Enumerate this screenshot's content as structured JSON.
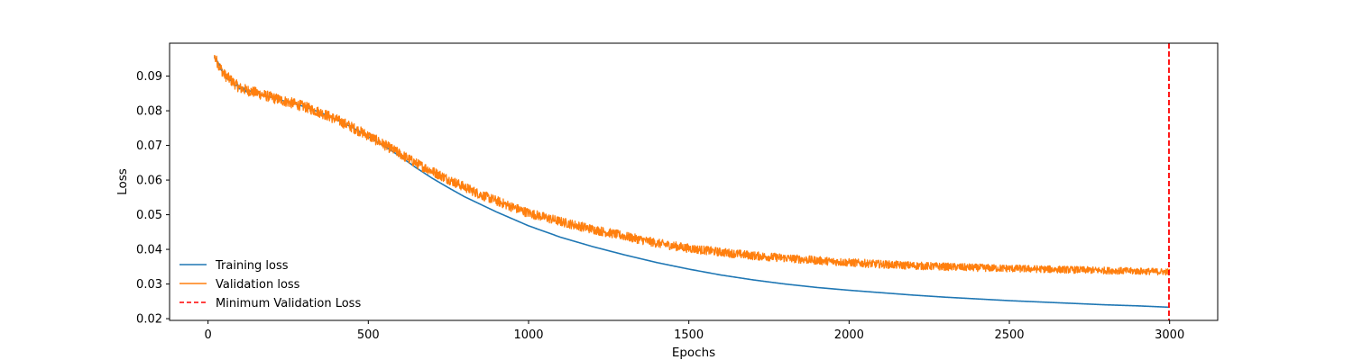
{
  "chart_data": {
    "type": "line",
    "title": "",
    "xlabel": "Epochs",
    "ylabel": "Loss",
    "xlim": [
      -120,
      3150
    ],
    "ylim": [
      0.0195,
      0.0995
    ],
    "xticks": [
      0,
      500,
      1000,
      1500,
      2000,
      2500,
      3000
    ],
    "xtick_labels": [
      "0",
      "500",
      "1000",
      "1500",
      "2000",
      "2500",
      "3000"
    ],
    "yticks": [
      0.02,
      0.03,
      0.04,
      0.05,
      0.06,
      0.07,
      0.08,
      0.09
    ],
    "ytick_labels": [
      "0.02",
      "0.03",
      "0.04",
      "0.05",
      "0.06",
      "0.07",
      "0.08",
      "0.09"
    ],
    "grid": false,
    "legend_placement": "lower-left",
    "series": [
      {
        "name": "Training loss",
        "color": "#1f77b4",
        "style": "solid",
        "x": [
          20,
          50,
          100,
          150,
          200,
          250,
          300,
          350,
          400,
          450,
          500,
          550,
          600,
          650,
          700,
          750,
          800,
          850,
          900,
          950,
          1000,
          1100,
          1200,
          1300,
          1400,
          1500,
          1600,
          1700,
          1800,
          1900,
          2000,
          2100,
          2200,
          2300,
          2400,
          2500,
          2600,
          2700,
          2800,
          2900,
          3000
        ],
        "y": [
          0.0955,
          0.0905,
          0.0865,
          0.0852,
          0.0838,
          0.0825,
          0.0812,
          0.0795,
          0.0775,
          0.0752,
          0.0725,
          0.0698,
          0.0668,
          0.0635,
          0.0605,
          0.0578,
          0.0552,
          0.053,
          0.0508,
          0.0488,
          0.0468,
          0.0435,
          0.0408,
          0.0384,
          0.0362,
          0.0343,
          0.0326,
          0.0312,
          0.03,
          0.029,
          0.0282,
          0.0275,
          0.0268,
          0.0262,
          0.0257,
          0.0252,
          0.0248,
          0.0244,
          0.024,
          0.0237,
          0.0233
        ]
      },
      {
        "name": "Validation loss",
        "color": "#ff7f0e",
        "style": "solid",
        "noisy": true,
        "x": [
          20,
          50,
          100,
          150,
          200,
          250,
          300,
          350,
          400,
          450,
          500,
          550,
          600,
          650,
          700,
          750,
          800,
          850,
          900,
          950,
          1000,
          1100,
          1200,
          1300,
          1400,
          1500,
          1600,
          1700,
          1800,
          1900,
          2000,
          2100,
          2200,
          2300,
          2400,
          2500,
          2600,
          2700,
          2800,
          2900,
          3000
        ],
        "y": [
          0.0955,
          0.0905,
          0.0865,
          0.0852,
          0.0838,
          0.0825,
          0.0812,
          0.0795,
          0.0775,
          0.0752,
          0.0728,
          0.0702,
          0.0675,
          0.0648,
          0.0625,
          0.0602,
          0.058,
          0.0558,
          0.054,
          0.0522,
          0.0505,
          0.048,
          0.0458,
          0.0438,
          0.0418,
          0.0403,
          0.0392,
          0.0382,
          0.0375,
          0.0368,
          0.0362,
          0.0357,
          0.0353,
          0.035,
          0.0347,
          0.0345,
          0.0343,
          0.0341,
          0.0339,
          0.0337,
          0.0335
        ]
      }
    ],
    "vlines": [
      {
        "name": "Minimum Validation Loss",
        "x": 2998,
        "color": "#ff0000",
        "style": "dashed"
      }
    ]
  }
}
